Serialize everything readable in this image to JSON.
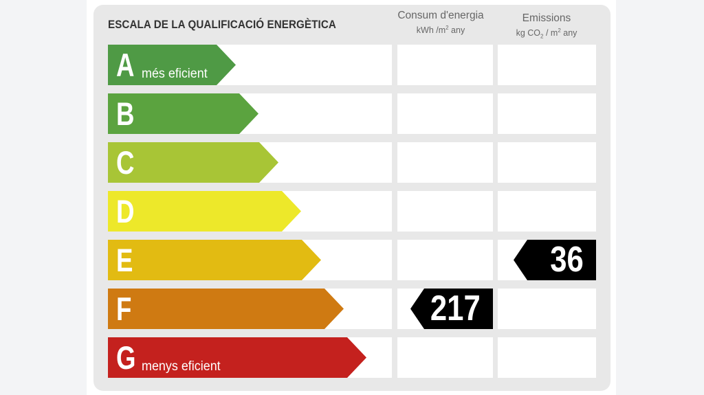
{
  "title": "ESCALA DE LA QUALIFICACIÓ ENERGÈTICA",
  "columns": {
    "consumption": {
      "label": "Consum d'energia",
      "unit_prefix": "kWh /m",
      "unit_exp": "2",
      "unit_suffix": " any"
    },
    "emissions": {
      "label": "Emissions",
      "unit_prefix": "kg CO",
      "unit_sub": "2",
      "unit_mid": " / m",
      "unit_exp": "2",
      "unit_suffix": " any"
    }
  },
  "ratings": [
    {
      "letter": "A",
      "note": "més eficient",
      "color": "#4f9a45",
      "fill": 0.45
    },
    {
      "letter": "B",
      "note": "",
      "color": "#5ba33f",
      "fill": 0.53
    },
    {
      "letter": "C",
      "note": "",
      "color": "#a8c536",
      "fill": 0.6
    },
    {
      "letter": "D",
      "note": "",
      "color": "#ede82a",
      "fill": 0.68
    },
    {
      "letter": "E",
      "note": "",
      "color": "#e2bb12",
      "fill": 0.75
    },
    {
      "letter": "F",
      "note": "",
      "color": "#cf7a12",
      "fill": 0.83
    },
    {
      "letter": "G",
      "note": "menys eficient",
      "color": "#c4211e",
      "fill": 0.91
    }
  ],
  "result": {
    "consumption": {
      "value": "217",
      "rating": "F"
    },
    "emissions": {
      "value": "36",
      "rating": "E"
    }
  }
}
